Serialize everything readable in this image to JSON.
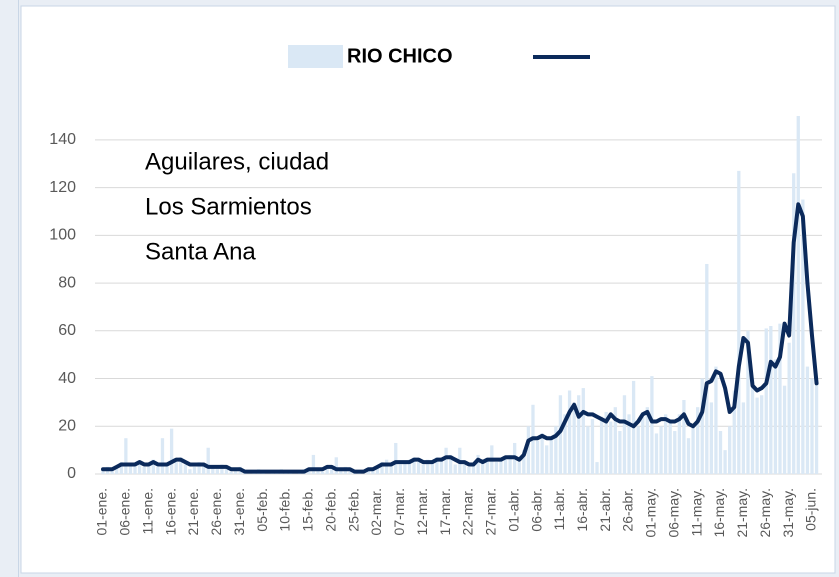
{
  "chart_data": {
    "type": "bar",
    "annotations": [
      "Aguilares, ciudad",
      "Los Sarmientos",
      "Santa Ana"
    ],
    "categories": [
      "01-ene.",
      null,
      null,
      null,
      null,
      "06-ene.",
      null,
      null,
      null,
      null,
      "11-ene.",
      null,
      null,
      null,
      null,
      "16-ene.",
      null,
      null,
      null,
      null,
      "21-ene.",
      null,
      null,
      null,
      null,
      "26-ene.",
      null,
      null,
      null,
      null,
      "31-ene.",
      null,
      null,
      null,
      null,
      "05-feb.",
      null,
      null,
      null,
      null,
      "10-feb.",
      null,
      null,
      null,
      null,
      "15-feb.",
      null,
      null,
      null,
      null,
      "20-feb.",
      null,
      null,
      null,
      null,
      "25-feb.",
      null,
      null,
      null,
      null,
      "02-mar.",
      null,
      null,
      null,
      null,
      "07-mar.",
      null,
      null,
      null,
      null,
      "12-mar.",
      null,
      null,
      null,
      null,
      "17-mar.",
      null,
      null,
      null,
      null,
      "22-mar.",
      null,
      null,
      null,
      null,
      "27-mar.",
      null,
      null,
      null,
      null,
      "01-abr.",
      null,
      null,
      null,
      null,
      "06-abr.",
      null,
      null,
      null,
      null,
      "11-abr.",
      null,
      null,
      null,
      null,
      "16-abr.",
      null,
      null,
      null,
      null,
      "21-abr.",
      null,
      null,
      null,
      null,
      "26-abr.",
      null,
      null,
      null,
      null,
      "01-may.",
      null,
      null,
      null,
      null,
      "06-may.",
      null,
      null,
      null,
      null,
      "11-may.",
      null,
      null,
      null,
      null,
      "16-may.",
      null,
      null,
      null,
      null,
      "21-may.",
      null,
      null,
      null,
      null,
      "26-may.",
      null,
      null,
      null,
      null,
      "31-may.",
      null,
      null,
      null,
      null,
      "05-jun.",
      null
    ],
    "series": [
      {
        "name": "RIO CHICO",
        "type": "bar",
        "color": "#dae8f5",
        "values": [
          2,
          3,
          2,
          3,
          5,
          15,
          4,
          4,
          5,
          3,
          4,
          6,
          3,
          15,
          4,
          19,
          5,
          7,
          4,
          2,
          3,
          5,
          4,
          11,
          3,
          2,
          4,
          3,
          1,
          2,
          3,
          1,
          0,
          1,
          2,
          1,
          0,
          1,
          1,
          2,
          1,
          1,
          0,
          1,
          2,
          2,
          8,
          2,
          1,
          3,
          2,
          7,
          2,
          3,
          1,
          1,
          1,
          0,
          2,
          2,
          3,
          5,
          6,
          4,
          13,
          4,
          5,
          6,
          7,
          5,
          4,
          6,
          5,
          7,
          6,
          11,
          8,
          4,
          11,
          5,
          3,
          4,
          8,
          5,
          6,
          12,
          5,
          6,
          7,
          8,
          13,
          5,
          10,
          20,
          29,
          14,
          17,
          12,
          15,
          20,
          33,
          25,
          35,
          30,
          33,
          36,
          20,
          23,
          5,
          24,
          26,
          22,
          28,
          18,
          33,
          25,
          39,
          20,
          24,
          28,
          41,
          17,
          20,
          25,
          22,
          18,
          25,
          31,
          15,
          20,
          28,
          40,
          88,
          30,
          45,
          18,
          10,
          20,
          35,
          127,
          30,
          60,
          40,
          32,
          33,
          61,
          62,
          48,
          63,
          37,
          55,
          126,
          150,
          115,
          45,
          40,
          38
        ]
      },
      {
        "type": "line",
        "color": "#0b2a5b",
        "values": [
          2,
          2,
          2,
          3,
          4,
          4,
          4,
          4,
          5,
          4,
          4,
          5,
          4,
          4,
          4,
          5,
          6,
          6,
          5,
          4,
          4,
          4,
          4,
          3,
          3,
          3,
          3,
          3,
          2,
          2,
          2,
          1,
          1,
          1,
          1,
          1,
          1,
          1,
          1,
          1,
          1,
          1,
          1,
          1,
          1,
          2,
          2,
          2,
          2,
          3,
          3,
          2,
          2,
          2,
          2,
          1,
          1,
          1,
          2,
          2,
          3,
          4,
          4,
          4,
          5,
          5,
          5,
          5,
          6,
          6,
          5,
          5,
          5,
          6,
          6,
          7,
          7,
          6,
          5,
          5,
          4,
          4,
          6,
          5,
          6,
          6,
          6,
          6,
          7,
          7,
          7,
          6,
          8,
          14,
          15,
          15,
          16,
          15,
          15,
          16,
          18,
          22,
          26,
          29,
          24,
          26,
          25,
          25,
          24,
          23,
          22,
          25,
          23,
          22,
          22,
          21,
          20,
          22,
          25,
          26,
          22,
          22,
          23,
          23,
          22,
          22,
          23,
          25,
          21,
          20,
          22,
          26,
          38,
          39,
          43,
          42,
          36,
          26,
          28,
          45,
          57,
          55,
          37,
          35,
          36,
          38,
          47,
          45,
          49,
          63,
          58,
          97,
          113,
          108,
          80,
          58,
          38
        ]
      }
    ],
    "ylim": [
      0,
      150
    ],
    "yticks": [
      0,
      20,
      40,
      60,
      80,
      100,
      120,
      140
    ],
    "grid": true
  }
}
